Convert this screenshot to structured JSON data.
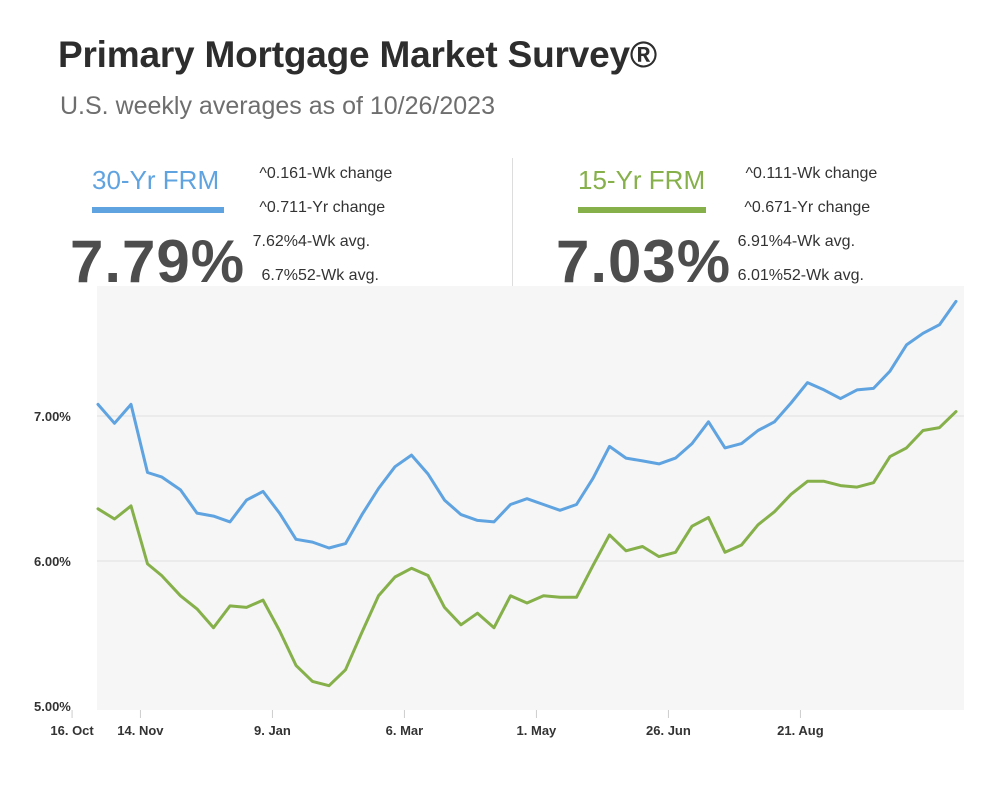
{
  "header": {
    "title": "Primary Mortgage Market Survey®",
    "subtitle": "U.S. weekly averages as of 10/26/2023"
  },
  "rates": [
    {
      "label": "30-Yr FRM",
      "value": "7.79%",
      "color": "#5fa3e0",
      "stats": [
        {
          "label": "1-Wk change",
          "value": "^0.16"
        },
        {
          "label": "1-Yr change",
          "value": "^0.71"
        },
        {
          "label": "4-Wk avg.",
          "value": "7.62%"
        },
        {
          "label": "52-Wk avg.",
          "value": "6.7%"
        }
      ]
    },
    {
      "label": "15-Yr FRM",
      "value": "7.03%",
      "color": "#86b04a",
      "stats": [
        {
          "label": "1-Wk change",
          "value": "^0.11"
        },
        {
          "label": "1-Yr change",
          "value": "^0.67"
        },
        {
          "label": "4-Wk avg.",
          "value": "6.91%"
        },
        {
          "label": "52-Wk avg.",
          "value": "6.01%"
        }
      ]
    }
  ],
  "chart_data": {
    "type": "line",
    "title": "",
    "xlabel": "",
    "ylabel": "",
    "ylim": [
      5.0,
      7.95
    ],
    "grid": true,
    "x_tick_labels": [
      "14. Nov",
      "9. Jan",
      "6. Mar",
      "1. May",
      "26. Jun",
      "21. Aug",
      "16. Oct"
    ],
    "y_tick_labels": [
      "5.00%",
      "6.00%",
      "7.00%"
    ],
    "y_ticks": [
      5.0,
      6.0,
      7.0
    ],
    "x": [
      "2022-10-27",
      "2022-11-03",
      "2022-11-10",
      "2022-11-17",
      "2022-11-23",
      "2022-12-01",
      "2022-12-08",
      "2022-12-15",
      "2022-12-22",
      "2022-12-29",
      "2023-01-05",
      "2023-01-12",
      "2023-01-19",
      "2023-01-26",
      "2023-02-02",
      "2023-02-09",
      "2023-02-16",
      "2023-02-23",
      "2023-03-02",
      "2023-03-09",
      "2023-03-16",
      "2023-03-23",
      "2023-03-30",
      "2023-04-06",
      "2023-04-13",
      "2023-04-20",
      "2023-04-27",
      "2023-05-04",
      "2023-05-11",
      "2023-05-18",
      "2023-05-25",
      "2023-06-01",
      "2023-06-08",
      "2023-06-15",
      "2023-06-22",
      "2023-06-29",
      "2023-07-06",
      "2023-07-13",
      "2023-07-20",
      "2023-07-27",
      "2023-08-03",
      "2023-08-10",
      "2023-08-17",
      "2023-08-24",
      "2023-08-31",
      "2023-09-07",
      "2023-09-14",
      "2023-09-21",
      "2023-09-28",
      "2023-10-05",
      "2023-10-12",
      "2023-10-19",
      "2023-10-26"
    ],
    "series": [
      {
        "color": "#5fa3e0",
        "values": [
          7.08,
          6.95,
          7.08,
          6.61,
          6.58,
          6.49,
          6.33,
          6.31,
          6.27,
          6.42,
          6.48,
          6.33,
          6.15,
          6.13,
          6.09,
          6.12,
          6.32,
          6.5,
          6.65,
          6.73,
          6.6,
          6.42,
          6.32,
          6.28,
          6.27,
          6.39,
          6.43,
          6.39,
          6.35,
          6.39,
          6.57,
          6.79,
          6.71,
          6.69,
          6.67,
          6.71,
          6.81,
          6.96,
          6.78,
          6.81,
          6.9,
          6.96,
          7.09,
          7.23,
          7.18,
          7.12,
          7.18,
          7.19,
          7.31,
          7.49,
          7.57,
          7.63,
          7.79
        ]
      },
      {
        "color": "#86b04a",
        "values": [
          6.36,
          6.29,
          6.38,
          5.98,
          5.9,
          5.76,
          5.67,
          5.54,
          5.69,
          5.68,
          5.73,
          5.52,
          5.28,
          5.17,
          5.14,
          5.25,
          5.51,
          5.76,
          5.89,
          5.95,
          5.9,
          5.68,
          5.56,
          5.64,
          5.54,
          5.76,
          5.71,
          5.76,
          5.75,
          5.75,
          5.97,
          6.18,
          6.07,
          6.1,
          6.03,
          6.06,
          6.24,
          6.3,
          6.06,
          6.11,
          6.25,
          6.34,
          6.46,
          6.55,
          6.55,
          6.52,
          6.51,
          6.54,
          6.72,
          6.78,
          6.9,
          6.92,
          7.03
        ]
      }
    ]
  }
}
